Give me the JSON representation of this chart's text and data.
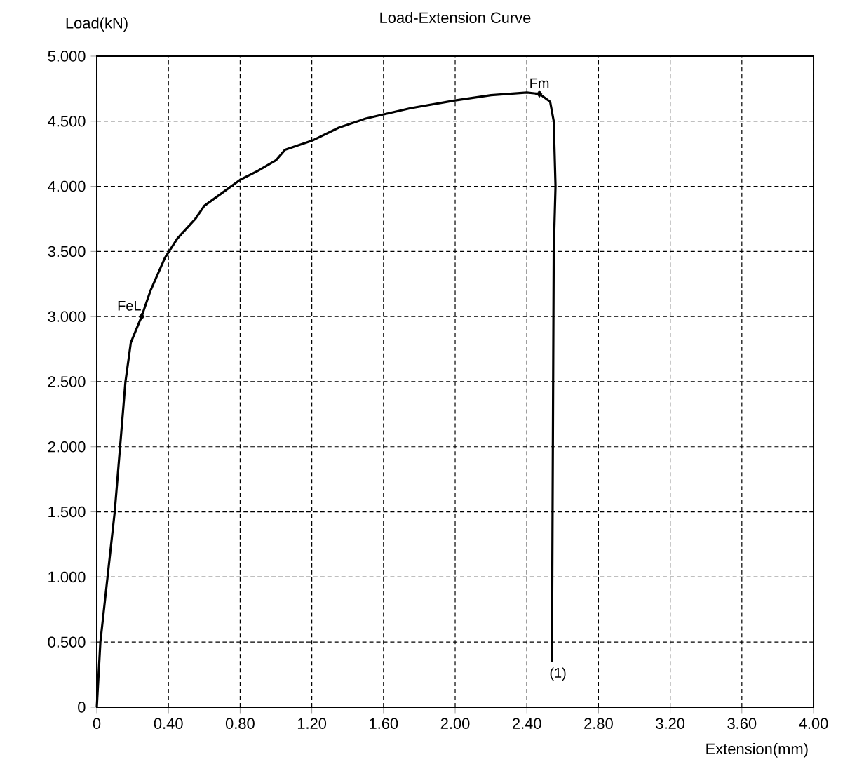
{
  "chart_data": {
    "type": "line",
    "title": "Load-Extension Curve",
    "xlabel": "Extension(mm)",
    "ylabel": "Load(kN)",
    "xlim": [
      0,
      4
    ],
    "ylim": [
      0,
      5
    ],
    "xticks": [
      0,
      {
        "value": 0.4,
        "label": "0.40"
      },
      {
        "value": 0.8,
        "label": "0.80"
      },
      {
        "value": 1.2,
        "label": "1.20"
      },
      {
        "value": 1.6,
        "label": "1.60"
      },
      {
        "value": 2.0,
        "label": "2.00"
      },
      {
        "value": 2.4,
        "label": "2.40"
      },
      {
        "value": 2.8,
        "label": "2.80"
      },
      {
        "value": 3.2,
        "label": "3.20"
      },
      {
        "value": 3.6,
        "label": "3.60"
      },
      {
        "value": 4.0,
        "label": "4.00"
      }
    ],
    "yticks": [
      0,
      {
        "value": 0.5,
        "label": "0.500"
      },
      {
        "value": 1.0,
        "label": "1.000"
      },
      {
        "value": 1.5,
        "label": "1.500"
      },
      {
        "value": 2.0,
        "label": "2.000"
      },
      {
        "value": 2.5,
        "label": "2.500"
      },
      {
        "value": 3.0,
        "label": "3.000"
      },
      {
        "value": 3.5,
        "label": "3.500"
      },
      {
        "value": 4.0,
        "label": "4.000"
      },
      {
        "value": 4.5,
        "label": "4.500"
      },
      {
        "value": 5.0,
        "label": "5.000"
      }
    ],
    "grid": true,
    "line_style": "solid",
    "series": [
      {
        "color": "#000000",
        "x": [
          0,
          0.02,
          0.06,
          0.1,
          0.13,
          0.16,
          0.19,
          0.25,
          0.3,
          0.38,
          0.45,
          0.55,
          0.6,
          0.7,
          0.8,
          0.9,
          1.0,
          1.05,
          1.2,
          1.35,
          1.5,
          1.75,
          2.0,
          2.2,
          2.4,
          2.47,
          2.53,
          2.55,
          2.56,
          2.55,
          2.54
        ],
        "values": [
          0,
          0.5,
          1.0,
          1.5,
          2.0,
          2.5,
          2.8,
          3.0,
          3.2,
          3.45,
          3.6,
          3.75,
          3.85,
          3.95,
          4.05,
          4.12,
          4.2,
          4.28,
          4.35,
          4.45,
          4.52,
          4.6,
          4.66,
          4.7,
          4.72,
          4.71,
          4.65,
          4.5,
          4.0,
          3.5,
          0.35
        ]
      },
      {
        "type": "scatter",
        "color": "#000000",
        "marker": "diamond",
        "x": [
          0.25,
          2.47
        ],
        "values": [
          3.0,
          4.71
        ]
      }
    ],
    "annotations": [
      {
        "text": "FeL",
        "x": 0.25,
        "y": 3.0
      },
      {
        "text": "Fm",
        "x": 2.47,
        "y": 4.71
      },
      {
        "text": "(1)",
        "x": 2.54,
        "y": 0.35
      }
    ]
  }
}
